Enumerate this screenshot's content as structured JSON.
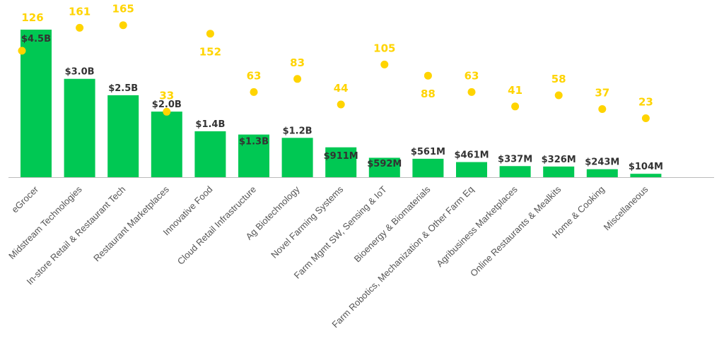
{
  "chart_data": {
    "type": "bar",
    "colors": {
      "bar": "#00c853",
      "dot": "#ffd400",
      "count_text": "#ffd400",
      "value_text": "#333333",
      "axis": "#bbbbbb",
      "category_text": "#555555"
    },
    "categories": [
      "eGrocer",
      "Midstream Technologies",
      "In-store Retail & Restaurant Tech",
      "Restaurant Marketplaces",
      "Innovative Food",
      "Cloud Retail Infrastructure",
      "Ag Biotechnology",
      "Novel Farming Systems",
      "Farm Mgmt SW, Sensing & IoT",
      "Bioenergy & Biomaterials",
      "Farm Robotics, Mechanization & Other Farm Eq",
      "Agribusiness Marketplaces",
      "Online Restaurants & Mealkits",
      "Home & Cooking",
      "Miscellaneous"
    ],
    "series": [
      {
        "type": "bar",
        "values": [
          4.5,
          3.0,
          2.5,
          2.0,
          1.4,
          1.3,
          1.2,
          0.911,
          0.592,
          0.561,
          0.461,
          0.337,
          0.326,
          0.243,
          0.104
        ],
        "labels": [
          "$4.5B",
          "$3.0B",
          "$2.5B",
          "$2.0B",
          "$1.4B",
          "$1.3B",
          "$1.2B",
          "$911M",
          "$592M",
          "$561M",
          "$461M",
          "$337M",
          "$326M",
          "$243M",
          "$104M"
        ]
      },
      {
        "type": "scatter",
        "values": [
          126,
          161,
          165,
          33,
          152,
          63,
          83,
          44,
          105,
          88,
          63,
          41,
          58,
          37,
          23
        ],
        "labels": [
          "126",
          "161",
          "165",
          "33",
          "152",
          "63",
          "83",
          "44",
          "105",
          "88",
          "63",
          "41",
          "58",
          "37",
          "23"
        ]
      }
    ]
  }
}
